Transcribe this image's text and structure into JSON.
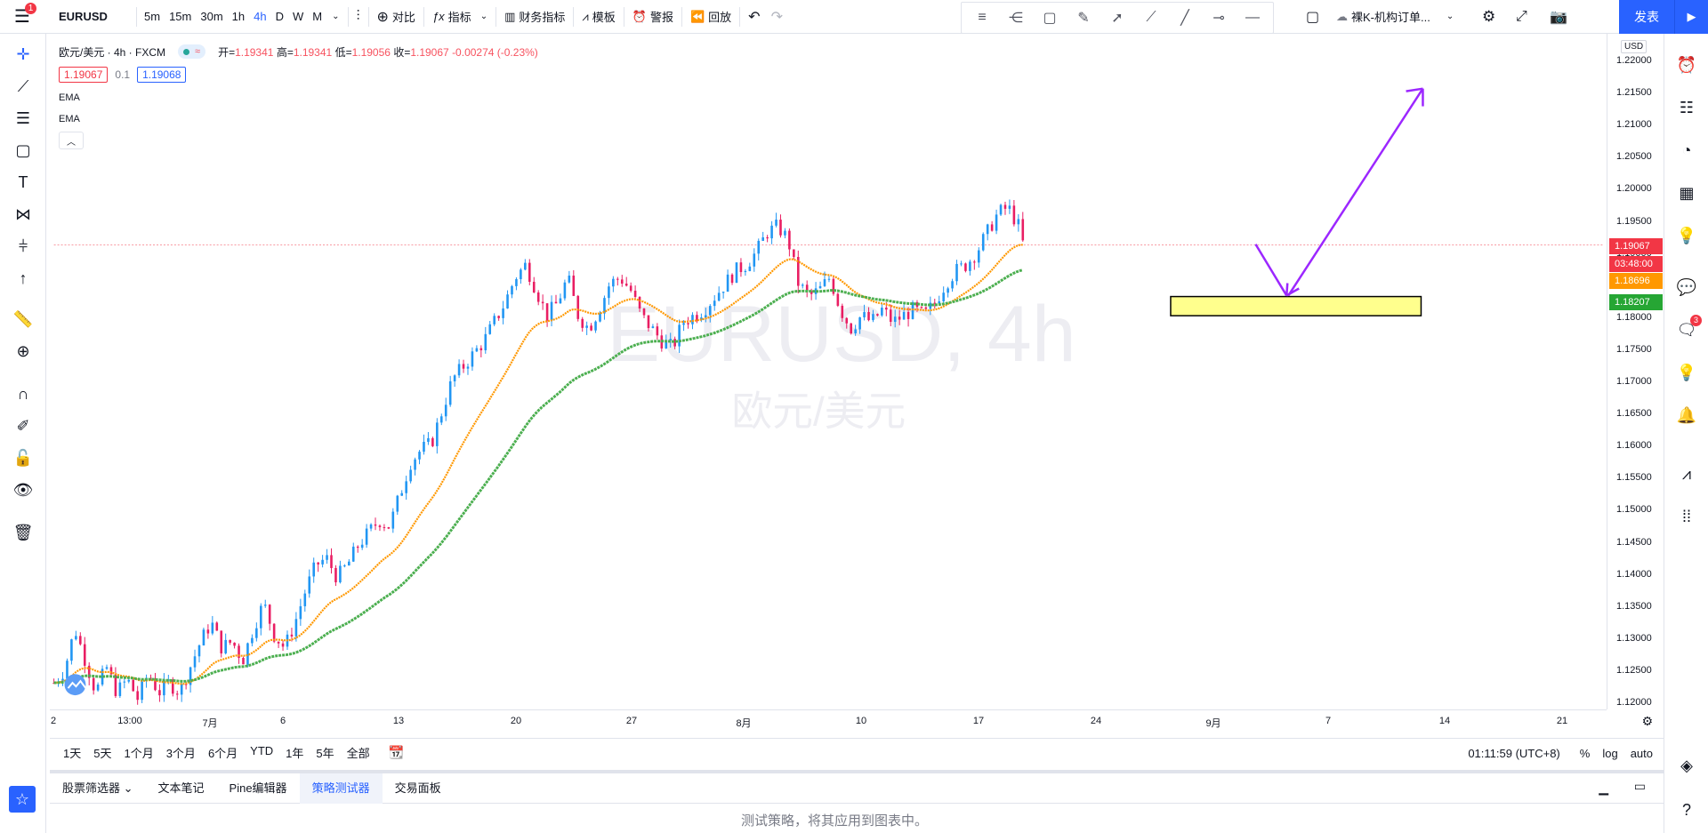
{
  "topbar": {
    "menu_badge": "1",
    "symbol": "EURUSD",
    "intervals": [
      "5m",
      "15m",
      "30m",
      "1h",
      "4h",
      "D",
      "W",
      "M"
    ],
    "active_interval": "4h",
    "compare": "对比",
    "indicators": "指标",
    "financials": "财务指标",
    "templates": "模板",
    "alert": "警报",
    "replay": "回放",
    "layout_name": "裸K-机构订单...",
    "publish": "发表"
  },
  "legend": {
    "title": "欧元/美元 · 4h · FXCM",
    "open_label": "开=",
    "open": "1.19341",
    "high_label": "高=",
    "high": "1.19341",
    "low_label": "低=",
    "low": "1.19056",
    "close_label": "收=",
    "close": "1.19067",
    "change": "-0.00274 (-0.23%)",
    "bid": "1.19067",
    "spread": "0.1",
    "ask": "1.19068",
    "indicators": [
      "EMA",
      "EMA"
    ]
  },
  "watermark": {
    "symbol": "EURUSD, 4h",
    "name": "欧元/美元"
  },
  "price_axis": {
    "currency": "USD",
    "ticks": [
      "1.22000",
      "1.21500",
      "1.21000",
      "1.20500",
      "1.20000",
      "1.19500",
      "1.19000",
      "1.18500",
      "1.18000",
      "1.17500",
      "1.17000",
      "1.16500",
      "1.16000",
      "1.15500",
      "1.15000",
      "1.14500",
      "1.14000",
      "1.13500",
      "1.13000",
      "1.12500",
      "1.12000"
    ],
    "labels": [
      {
        "text": "1.19067",
        "color": "#f23645"
      },
      {
        "text": "03:48:00",
        "color": "#f23645"
      },
      {
        "text": "1.18696",
        "color": "#ff9800"
      },
      {
        "text": "1.18207",
        "color": "#26a634"
      }
    ]
  },
  "time_axis": {
    "ticks": [
      "2",
      "13:00",
      "7月",
      "6",
      "13",
      "20",
      "27",
      "8月",
      "10",
      "17",
      "24",
      "9月",
      "7",
      "14",
      "21"
    ]
  },
  "range_bar": {
    "ranges": [
      "1天",
      "5天",
      "1个月",
      "3个月",
      "6个月",
      "YTD",
      "1年",
      "5年",
      "全部"
    ],
    "clock": "01:11:59 (UTC+8)",
    "percent": "%",
    "log": "log",
    "auto": "auto"
  },
  "bottom_panel": {
    "tabs": [
      "股票筛选器",
      "文本笔记",
      "Pine编辑器",
      "策略测试器",
      "交易面板"
    ],
    "active_tab": "策略测试器",
    "message": "测试策略，将其应用到图表中。"
  },
  "rightbar": {
    "notification_badge": "3"
  },
  "chart_data": {
    "type": "candlestick",
    "ylim": [
      1.119,
      1.221
    ],
    "fast_ema_color": "#ff9800",
    "slow_ema_color": "#4caf50",
    "up_color": "#2196f3",
    "down_color": "#e91e63",
    "zone": {
      "low": 1.18,
      "high": 1.183,
      "fill": "#ffff8d"
    },
    "arrow_color": "#9c27ff",
    "trend_points": [
      [
        0,
        1.1225
      ],
      [
        10,
        1.1245
      ],
      [
        20,
        1.131
      ],
      [
        30,
        1.126
      ],
      [
        40,
        1.121
      ],
      [
        50,
        1.125
      ],
      [
        60,
        1.121
      ],
      [
        70,
        1.123
      ],
      [
        80,
        1.12
      ],
      [
        90,
        1.124
      ],
      [
        100,
        1.121
      ],
      [
        110,
        1.1225
      ],
      [
        120,
        1.121
      ],
      [
        130,
        1.125
      ],
      [
        140,
        1.129
      ],
      [
        150,
        1.132
      ],
      [
        160,
        1.128
      ],
      [
        170,
        1.129
      ],
      [
        180,
        1.126
      ],
      [
        190,
        1.131
      ],
      [
        200,
        1.135
      ],
      [
        210,
        1.13
      ],
      [
        220,
        1.128
      ],
      [
        230,
        1.132
      ],
      [
        240,
        1.137
      ],
      [
        250,
        1.141
      ],
      [
        260,
        1.142
      ],
      [
        270,
        1.139
      ],
      [
        280,
        1.141
      ],
      [
        290,
        1.144
      ],
      [
        300,
        1.146
      ],
      [
        310,
        1.148
      ],
      [
        320,
        1.147
      ],
      [
        330,
        1.152
      ],
      [
        340,
        1.157
      ],
      [
        350,
        1.159
      ],
      [
        360,
        1.16
      ],
      [
        370,
        1.165
      ],
      [
        380,
        1.17
      ],
      [
        390,
        1.172
      ],
      [
        400,
        1.174
      ],
      [
        410,
        1.176
      ],
      [
        420,
        1.179
      ],
      [
        430,
        1.182
      ],
      [
        440,
        1.186
      ],
      [
        450,
        1.188
      ],
      [
        460,
        1.184
      ],
      [
        470,
        1.18
      ],
      [
        480,
        1.182
      ],
      [
        490,
        1.186
      ],
      [
        500,
        1.18
      ],
      [
        510,
        1.178
      ],
      [
        520,
        1.181
      ],
      [
        530,
        1.185
      ],
      [
        540,
        1.186
      ],
      [
        550,
        1.184
      ],
      [
        560,
        1.18
      ],
      [
        570,
        1.178
      ],
      [
        580,
        1.176
      ],
      [
        590,
        1.175
      ],
      [
        600,
        1.179
      ],
      [
        610,
        1.18
      ],
      [
        620,
        1.181
      ],
      [
        630,
        1.183
      ],
      [
        640,
        1.185
      ],
      [
        650,
        1.187
      ],
      [
        660,
        1.188
      ],
      [
        670,
        1.19
      ],
      [
        680,
        1.193
      ],
      [
        690,
        1.194
      ],
      [
        700,
        1.192
      ],
      [
        710,
        1.185
      ],
      [
        720,
        1.183
      ],
      [
        730,
        1.184
      ],
      [
        740,
        1.186
      ],
      [
        750,
        1.181
      ],
      [
        760,
        1.178
      ],
      [
        770,
        1.18
      ],
      [
        780,
        1.179
      ],
      [
        790,
        1.181
      ],
      [
        800,
        1.179
      ],
      [
        810,
        1.18
      ],
      [
        820,
        1.181
      ],
      [
        830,
        1.18
      ],
      [
        840,
        1.182
      ],
      [
        850,
        1.185
      ],
      [
        860,
        1.187
      ],
      [
        870,
        1.188
      ],
      [
        880,
        1.19
      ],
      [
        890,
        1.193
      ],
      [
        900,
        1.196
      ],
      [
        910,
        1.197
      ],
      [
        920,
        1.194
      ],
      [
        925,
        1.1907
      ]
    ]
  }
}
